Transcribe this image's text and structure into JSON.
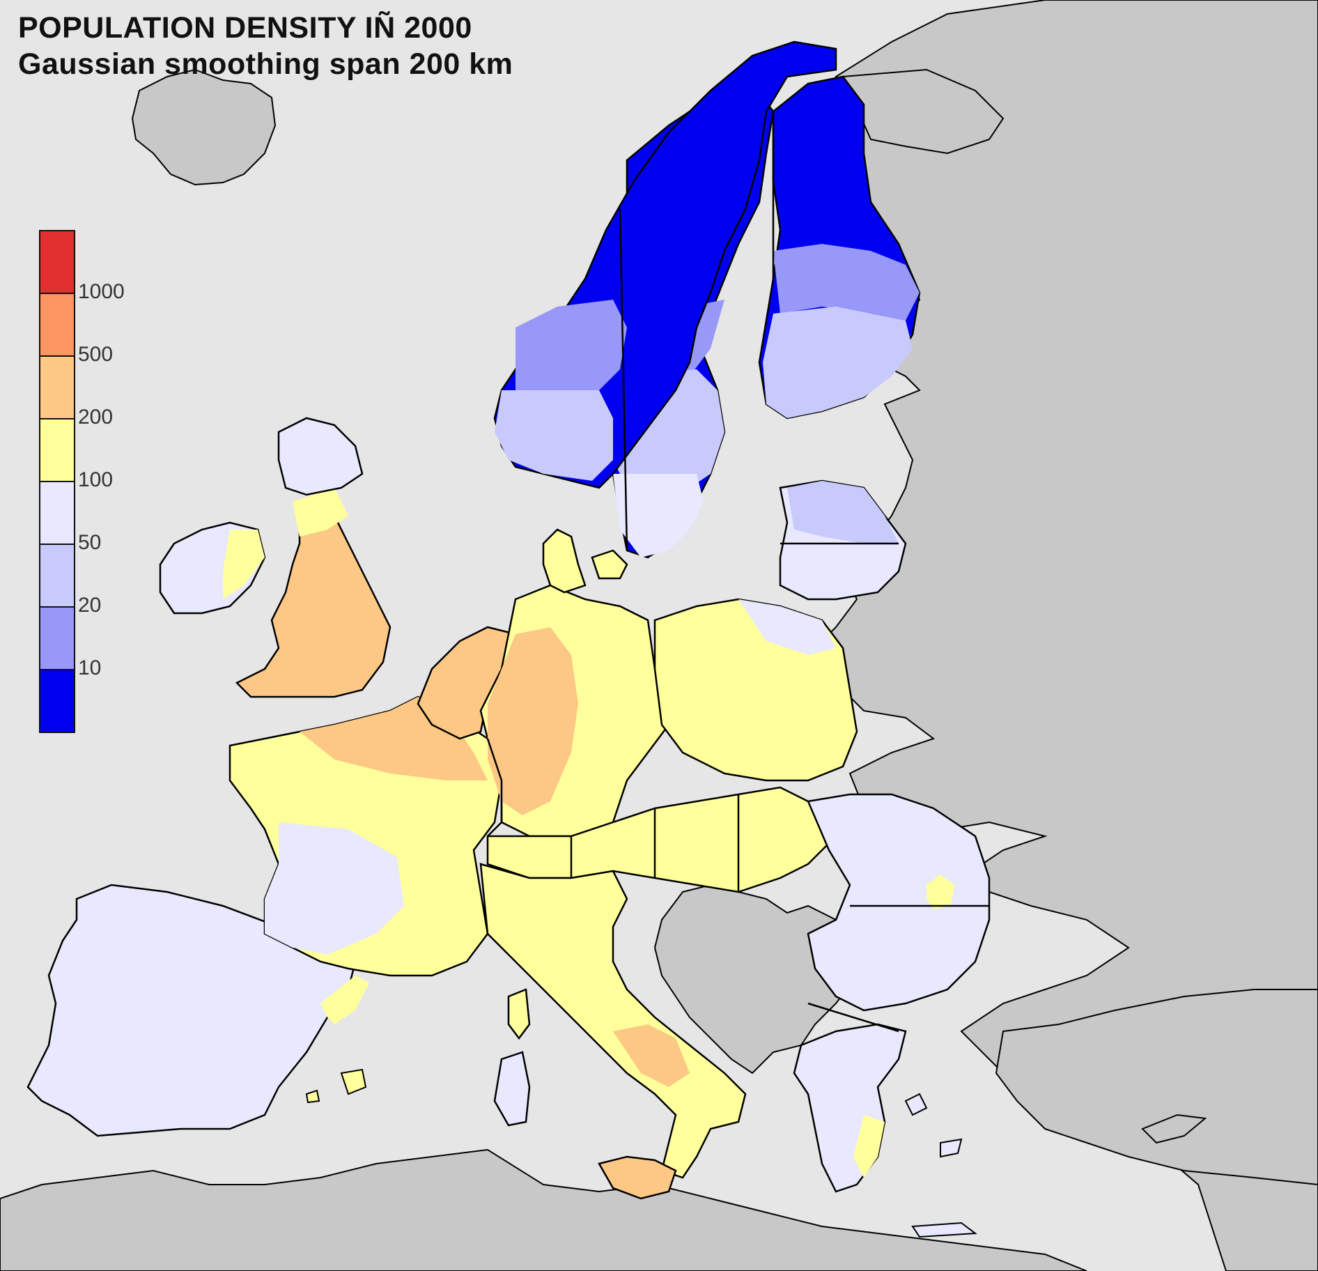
{
  "title": {
    "line1": "POPULATION DENSITY IÑ 2000",
    "line2": "Gaussian smoothing span 200 km"
  },
  "legend": {
    "classes": [
      {
        "color": "#e03030"
      },
      {
        "color": "#fb9660"
      },
      {
        "color": "#fdc885"
      },
      {
        "color": "#ffff9c"
      },
      {
        "color": "#e8e8ff"
      },
      {
        "color": "#c9cafc"
      },
      {
        "color": "#9898f8"
      },
      {
        "color": "#0000f0"
      }
    ],
    "break_labels": [
      "1000",
      "500",
      "200",
      "100",
      "50",
      "20",
      "10"
    ]
  },
  "colors": {
    "sea": "#e6e6e6",
    "non_study_land": "#c8c8c8",
    "border": "#000000"
  }
}
